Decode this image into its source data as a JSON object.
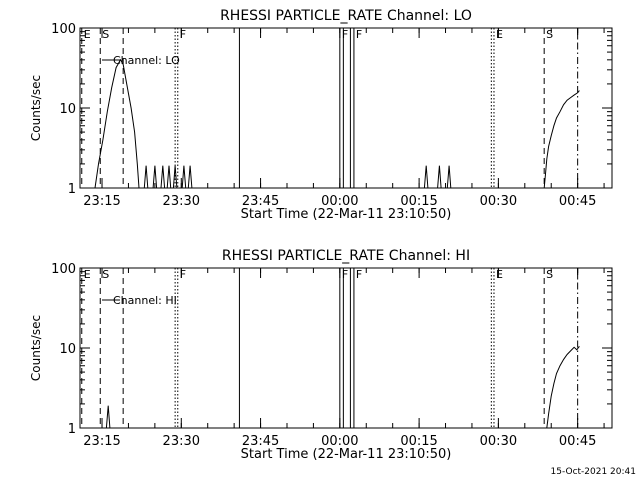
{
  "footer": {
    "timestamp": "15-Oct-2021 20:41"
  },
  "marker_types": {
    "E": "dashed",
    "S": "dashed",
    "F": "dotted",
    "end": "dashdot"
  },
  "chart_data": [
    {
      "type": "line",
      "title": "RHESSI PARTICLE_RATE Channel: LO",
      "xlabel": "Start Time (22-Mar-11 23:10:50)",
      "ylabel": "Counts/sec",
      "yscale": "log",
      "ylim": [
        1,
        100
      ],
      "xlim": [
        "23:10:50",
        "00:51:30"
      ],
      "x_ticks": [
        "23:15",
        "23:30",
        "23:45",
        "00:00",
        "00:15",
        "00:30",
        "00:45"
      ],
      "y_ticks": [
        "1",
        "10",
        "100"
      ],
      "legend": "Channel: LO",
      "grid": false,
      "markers": [
        {
          "time": "23:11:10",
          "label": "E",
          "style": "dashed"
        },
        {
          "time": "23:14:40",
          "label": "S",
          "style": "dashed"
        },
        {
          "time": "23:19:00",
          "label": "",
          "style": "dashed"
        },
        {
          "time": "23:28:50",
          "label": "",
          "style": "dotted"
        },
        {
          "time": "23:29:20",
          "label": "F",
          "style": "dotted"
        },
        {
          "time": "23:41:00",
          "label": "",
          "style": "solid"
        },
        {
          "time": "00:00:00",
          "label": "F",
          "style": "solid"
        },
        {
          "time": "00:00:40",
          "label": "",
          "style": "solid"
        },
        {
          "time": "00:02:00",
          "label": "",
          "style": "solid"
        },
        {
          "time": "00:02:40",
          "label": "F",
          "style": "solid"
        },
        {
          "time": "00:28:40",
          "label": "",
          "style": "dotted"
        },
        {
          "time": "00:29:10",
          "label": "E",
          "style": "dotted"
        },
        {
          "time": "00:38:40",
          "label": "S",
          "style": "dashed"
        },
        {
          "time": "00:45:00",
          "label": "",
          "style": "dashdot"
        }
      ],
      "series": [
        {
          "segments": [
            [
              [
                "23:13:40",
                1
              ],
              [
                "23:14:20",
                2
              ],
              [
                "23:15:10",
                4
              ],
              [
                "23:16:00",
                9
              ],
              [
                "23:16:50",
                18
              ],
              [
                "23:17:40",
                32
              ],
              [
                "23:18:30",
                40
              ],
              [
                "23:19:00",
                35
              ],
              [
                "23:19:40",
                20
              ],
              [
                "23:20:30",
                10
              ],
              [
                "23:21:10",
                5
              ],
              [
                "23:21:40",
                2
              ],
              [
                "23:22:00",
                1
              ]
            ],
            [
              [
                "23:23:00",
                1
              ],
              [
                "23:23:20",
                1.9
              ],
              [
                "23:23:40",
                1
              ]
            ],
            [
              [
                "23:24:40",
                1
              ],
              [
                "23:25:00",
                1.9
              ],
              [
                "23:25:20",
                1
              ]
            ],
            [
              [
                "23:26:10",
                1
              ],
              [
                "23:26:30",
                1.9
              ],
              [
                "23:26:50",
                1
              ]
            ],
            [
              [
                "23:27:20",
                1
              ],
              [
                "23:27:40",
                1.9
              ],
              [
                "23:28:00",
                1
              ]
            ],
            [
              [
                "23:28:30",
                1
              ],
              [
                "23:28:50",
                1.9
              ],
              [
                "23:29:10",
                1
              ]
            ],
            [
              [
                "23:30:10",
                1
              ],
              [
                "23:30:30",
                1.9
              ],
              [
                "23:30:50",
                1
              ]
            ],
            [
              [
                "23:31:20",
                1
              ],
              [
                "23:31:40",
                1.9
              ],
              [
                "23:32:00",
                1
              ]
            ],
            [
              [
                "00:16:00",
                1
              ],
              [
                "00:16:20",
                1.9
              ],
              [
                "00:16:40",
                1
              ]
            ],
            [
              [
                "00:18:30",
                1
              ],
              [
                "00:18:50",
                1.9
              ],
              [
                "00:19:10",
                1
              ]
            ],
            [
              [
                "00:20:20",
                1
              ],
              [
                "00:20:40",
                1.9
              ],
              [
                "00:21:00",
                1
              ]
            ],
            [
              [
                "00:38:40",
                1
              ],
              [
                "00:38:55",
                1.5
              ],
              [
                "00:39:10",
                2.3
              ],
              [
                "00:39:30",
                3.3
              ],
              [
                "00:40:00",
                4.5
              ],
              [
                "00:40:30",
                6
              ],
              [
                "00:41:00",
                7.5
              ],
              [
                "00:41:40",
                9
              ],
              [
                "00:42:20",
                11
              ],
              [
                "00:43:00",
                12.5
              ],
              [
                "00:43:40",
                13.5
              ],
              [
                "00:44:20",
                14.5
              ],
              [
                "00:45:00",
                15.5
              ],
              [
                "00:45:20",
                16.5
              ]
            ]
          ]
        }
      ]
    },
    {
      "type": "line",
      "title": "RHESSI PARTICLE_RATE Channel: HI",
      "xlabel": "Start Time (22-Mar-11 23:10:50)",
      "ylabel": "Counts/sec",
      "yscale": "log",
      "ylim": [
        1,
        100
      ],
      "xlim": [
        "23:10:50",
        "00:51:30"
      ],
      "x_ticks": [
        "23:15",
        "23:30",
        "23:45",
        "00:00",
        "00:15",
        "00:30",
        "00:45"
      ],
      "y_ticks": [
        "1",
        "10",
        "100"
      ],
      "legend": "Channel: HI",
      "grid": false,
      "markers": [
        {
          "time": "23:11:10",
          "label": "E",
          "style": "dashed"
        },
        {
          "time": "23:14:40",
          "label": "S",
          "style": "dashed"
        },
        {
          "time": "23:19:00",
          "label": "",
          "style": "dashed"
        },
        {
          "time": "23:28:50",
          "label": "",
          "style": "dotted"
        },
        {
          "time": "23:29:20",
          "label": "F",
          "style": "dotted"
        },
        {
          "time": "23:41:00",
          "label": "",
          "style": "solid"
        },
        {
          "time": "00:00:00",
          "label": "F",
          "style": "solid"
        },
        {
          "time": "00:00:40",
          "label": "",
          "style": "solid"
        },
        {
          "time": "00:02:00",
          "label": "",
          "style": "solid"
        },
        {
          "time": "00:02:40",
          "label": "F",
          "style": "solid"
        },
        {
          "time": "00:28:40",
          "label": "",
          "style": "dotted"
        },
        {
          "time": "00:29:10",
          "label": "E",
          "style": "dotted"
        },
        {
          "time": "00:38:40",
          "label": "S",
          "style": "dashed"
        },
        {
          "time": "00:45:00",
          "label": "",
          "style": "dashdot"
        }
      ],
      "series": [
        {
          "segments": [
            [
              [
                "23:15:50",
                1
              ],
              [
                "23:16:10",
                1.9
              ],
              [
                "23:16:30",
                1
              ]
            ],
            [
              [
                "00:39:10",
                1
              ],
              [
                "00:39:30",
                1.5
              ],
              [
                "00:40:00",
                2.5
              ],
              [
                "00:40:30",
                3.6
              ],
              [
                "00:41:00",
                4.8
              ],
              [
                "00:41:40",
                6
              ],
              [
                "00:42:20",
                7.2
              ],
              [
                "00:43:00",
                8.3
              ],
              [
                "00:43:40",
                9.2
              ],
              [
                "00:44:20",
                10.2
              ],
              [
                "00:44:50",
                9.5
              ],
              [
                "00:45:20",
                10.5
              ]
            ]
          ]
        }
      ]
    }
  ]
}
